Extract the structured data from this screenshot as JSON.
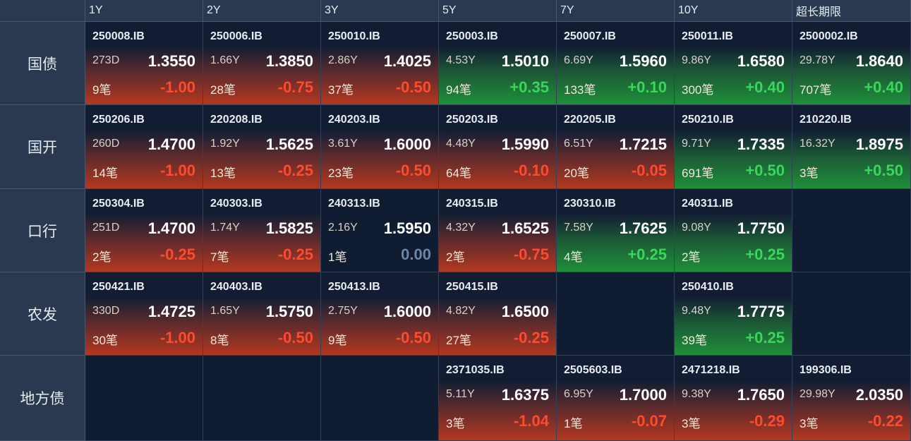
{
  "columns": [
    "1Y",
    "2Y",
    "3Y",
    "5Y",
    "7Y",
    "10Y",
    "超长期限"
  ],
  "rows": [
    {
      "label": "国债",
      "cells": [
        {
          "code": "250008.IB",
          "term": "273D",
          "price": "1.3550",
          "count": "9笔",
          "change": "-1.00",
          "dir": "down"
        },
        {
          "code": "250006.IB",
          "term": "1.66Y",
          "price": "1.3850",
          "count": "28笔",
          "change": "-0.75",
          "dir": "down"
        },
        {
          "code": "250010.IB",
          "term": "2.86Y",
          "price": "1.4025",
          "count": "37笔",
          "change": "-0.50",
          "dir": "down"
        },
        {
          "code": "250003.IB",
          "term": "4.53Y",
          "price": "1.5010",
          "count": "94笔",
          "change": "+0.35",
          "dir": "up"
        },
        {
          "code": "250007.IB",
          "term": "6.69Y",
          "price": "1.5960",
          "count": "133笔",
          "change": "+0.10",
          "dir": "up"
        },
        {
          "code": "250011.IB",
          "term": "9.86Y",
          "price": "1.6580",
          "count": "300笔",
          "change": "+0.40",
          "dir": "up"
        },
        {
          "code": "2500002.IB",
          "term": "29.78Y",
          "price": "1.8640",
          "count": "707笔",
          "change": "+0.40",
          "dir": "up"
        }
      ]
    },
    {
      "label": "国开",
      "cells": [
        {
          "code": "250206.IB",
          "term": "260D",
          "price": "1.4700",
          "count": "14笔",
          "change": "-1.00",
          "dir": "down"
        },
        {
          "code": "220208.IB",
          "term": "1.92Y",
          "price": "1.5625",
          "count": "13笔",
          "change": "-0.25",
          "dir": "down"
        },
        {
          "code": "240203.IB",
          "term": "3.61Y",
          "price": "1.6000",
          "count": "23笔",
          "change": "-0.50",
          "dir": "down"
        },
        {
          "code": "250203.IB",
          "term": "4.48Y",
          "price": "1.5990",
          "count": "64笔",
          "change": "-0.10",
          "dir": "down"
        },
        {
          "code": "220205.IB",
          "term": "6.51Y",
          "price": "1.7215",
          "count": "20笔",
          "change": "-0.05",
          "dir": "down"
        },
        {
          "code": "250210.IB",
          "term": "9.71Y",
          "price": "1.7335",
          "count": "691笔",
          "change": "+0.50",
          "dir": "up"
        },
        {
          "code": "210220.IB",
          "term": "16.32Y",
          "price": "1.8975",
          "count": "3笔",
          "change": "+0.50",
          "dir": "up"
        }
      ]
    },
    {
      "label": "口行",
      "cells": [
        {
          "code": "250304.IB",
          "term": "251D",
          "price": "1.4700",
          "count": "2笔",
          "change": "-0.25",
          "dir": "down"
        },
        {
          "code": "240303.IB",
          "term": "1.74Y",
          "price": "1.5825",
          "count": "7笔",
          "change": "-0.25",
          "dir": "down"
        },
        {
          "code": "240313.IB",
          "term": "2.16Y",
          "price": "1.5950",
          "count": "1笔",
          "change": "0.00",
          "dir": "flat"
        },
        {
          "code": "240315.IB",
          "term": "4.32Y",
          "price": "1.6525",
          "count": "2笔",
          "change": "-0.75",
          "dir": "down"
        },
        {
          "code": "230310.IB",
          "term": "7.58Y",
          "price": "1.7625",
          "count": "4笔",
          "change": "+0.25",
          "dir": "up"
        },
        {
          "code": "240311.IB",
          "term": "9.08Y",
          "price": "1.7750",
          "count": "2笔",
          "change": "+0.25",
          "dir": "up"
        },
        null
      ]
    },
    {
      "label": "农发",
      "cells": [
        {
          "code": "250421.IB",
          "term": "330D",
          "price": "1.4725",
          "count": "30笔",
          "change": "-1.00",
          "dir": "down"
        },
        {
          "code": "240403.IB",
          "term": "1.65Y",
          "price": "1.5750",
          "count": "8笔",
          "change": "-0.50",
          "dir": "down"
        },
        {
          "code": "250413.IB",
          "term": "2.75Y",
          "price": "1.6000",
          "count": "9笔",
          "change": "-0.50",
          "dir": "down"
        },
        {
          "code": "250415.IB",
          "term": "4.82Y",
          "price": "1.6500",
          "count": "27笔",
          "change": "-0.25",
          "dir": "down"
        },
        null,
        {
          "code": "250410.IB",
          "term": "9.48Y",
          "price": "1.7775",
          "count": "39笔",
          "change": "+0.25",
          "dir": "up"
        },
        null
      ]
    },
    {
      "label": "地方债",
      "cells": [
        null,
        null,
        null,
        {
          "code": "2371035.IB",
          "term": "5.11Y",
          "price": "1.6375",
          "count": "3笔",
          "change": "-1.04",
          "dir": "down"
        },
        {
          "code": "2505603.IB",
          "term": "6.95Y",
          "price": "1.7000",
          "count": "1笔",
          "change": "-0.07",
          "dir": "down"
        },
        {
          "code": "2471218.IB",
          "term": "9.38Y",
          "price": "1.7650",
          "count": "3笔",
          "change": "-0.29",
          "dir": "down"
        },
        {
          "code": "199306.IB",
          "term": "29.98Y",
          "price": "2.0350",
          "count": "3笔",
          "change": "-0.22",
          "dir": "down"
        }
      ]
    }
  ],
  "colors": {
    "up": "#39d65a",
    "down": "#ff4a2e",
    "flat": "#6d86a8",
    "header_bg": "#2b3950",
    "body_bg": "#0f1c31"
  }
}
